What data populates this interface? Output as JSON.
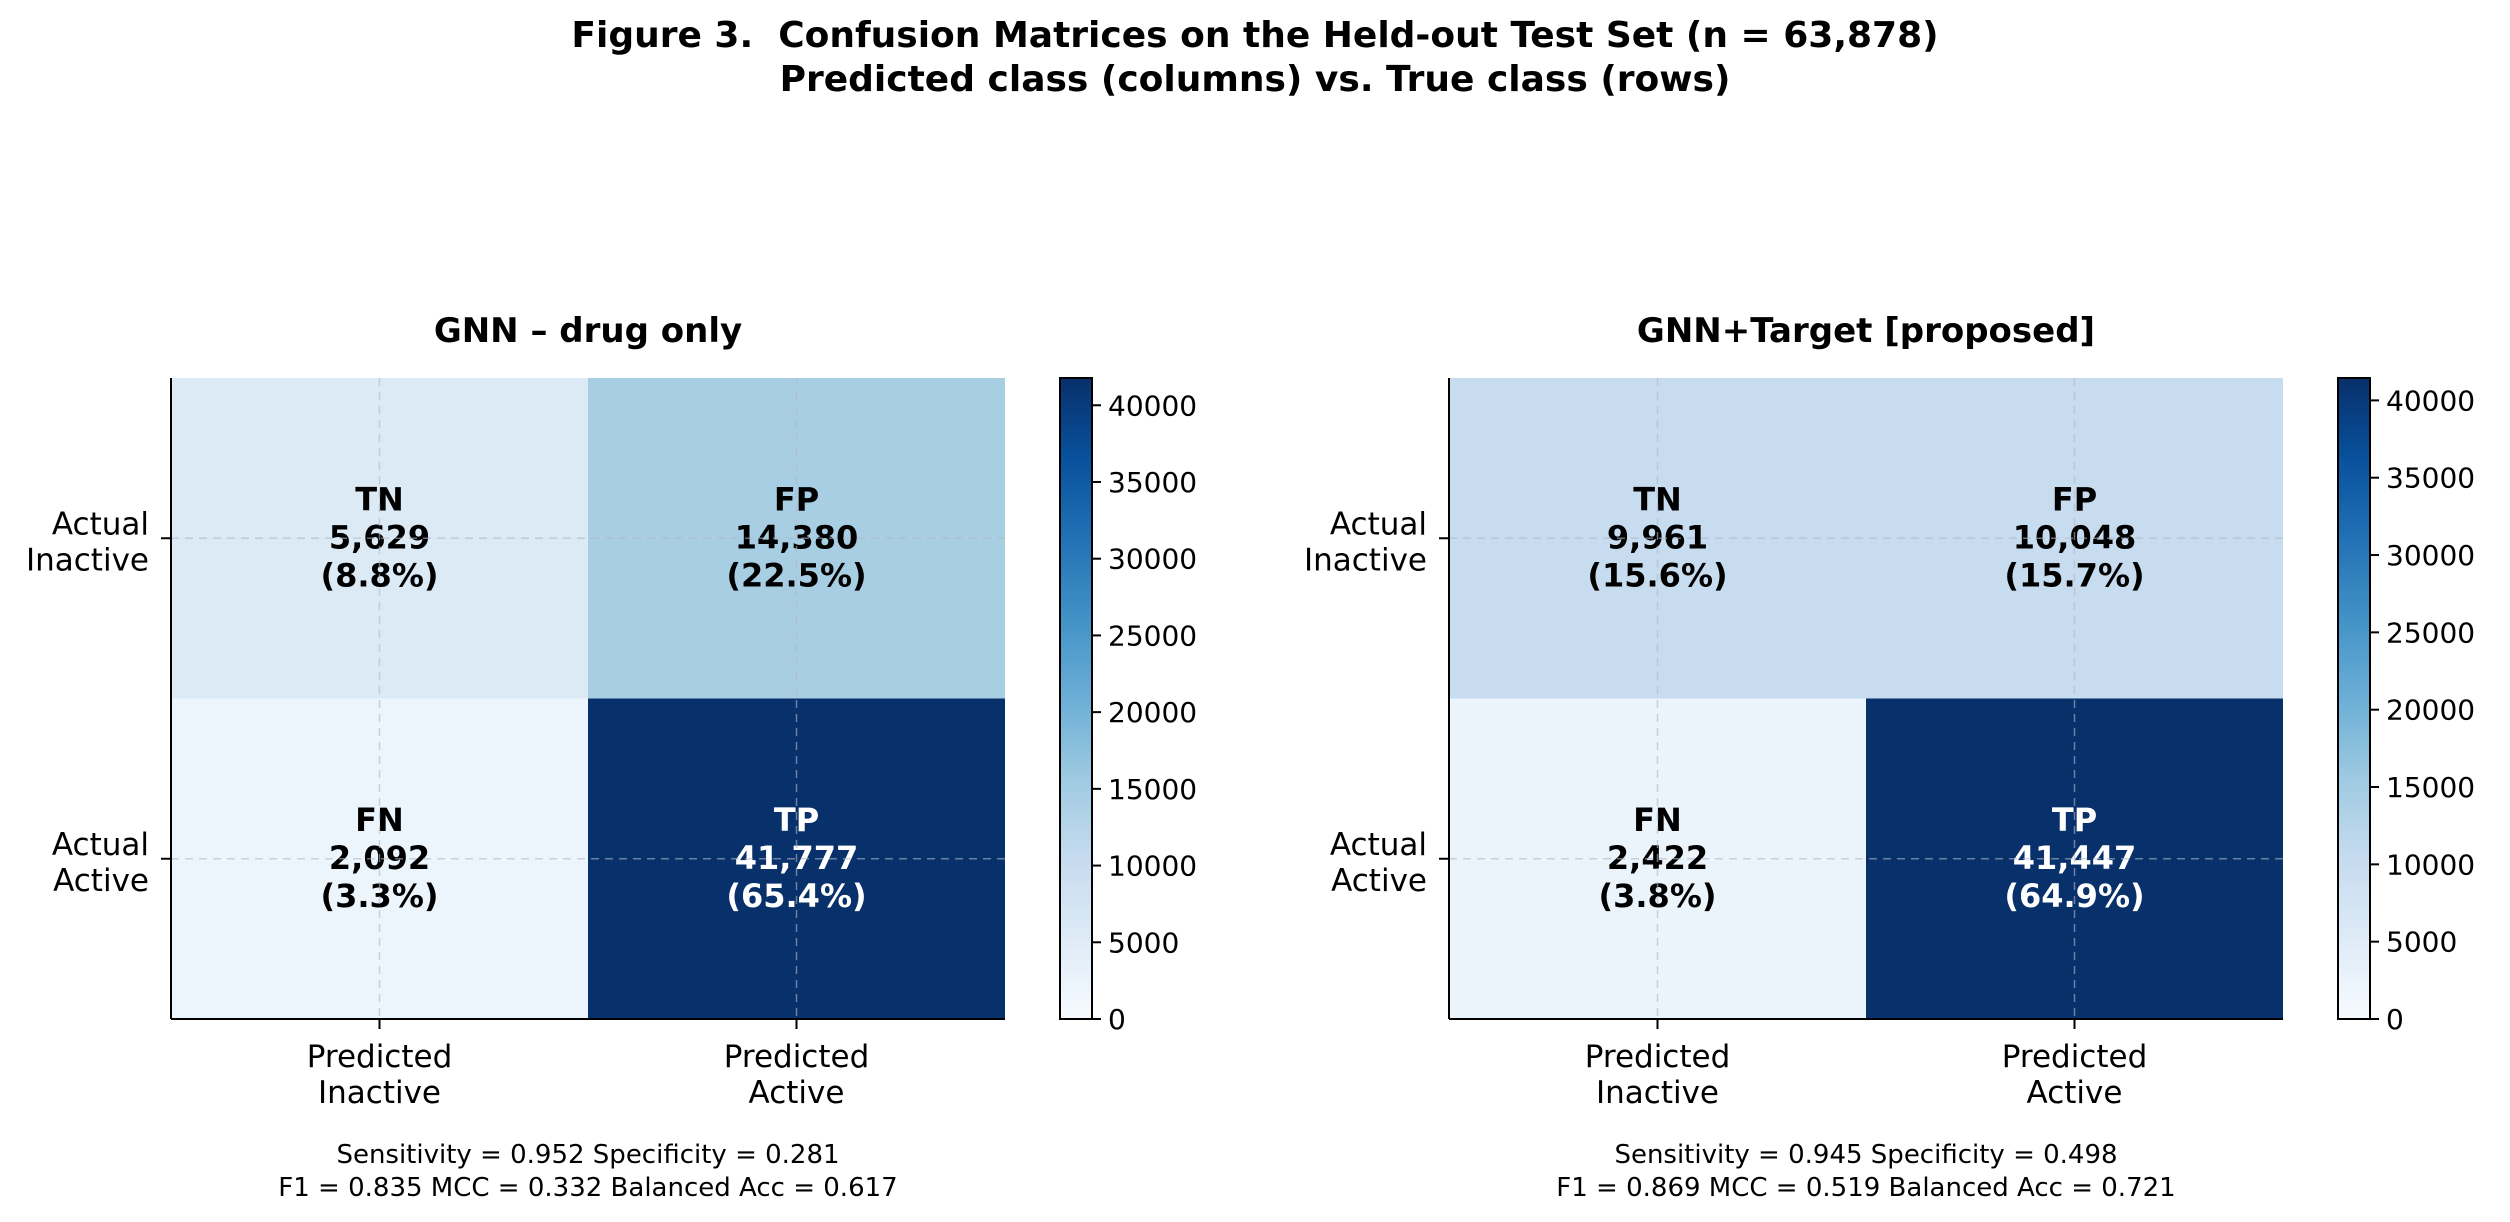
{
  "figure": {
    "title_line1": "Figure 3.  Confusion Matrices on the Held-out Test Set (n = 63,878)",
    "title_line2": "Predicted class (columns) vs. True class (rows)"
  },
  "colors": {
    "colormap": "Blues",
    "text_dark": "#000000",
    "text_light": "#ffffff",
    "gridline": "#b0b8c8"
  },
  "chart_data": [
    {
      "type": "heatmap",
      "title": "GNN – drug only",
      "x_categories": [
        [
          "Predicted",
          "Inactive"
        ],
        [
          "Predicted",
          "Active"
        ]
      ],
      "y_categories": [
        [
          "Actual",
          "Inactive"
        ],
        [
          "Actual",
          "Active"
        ]
      ],
      "cells": [
        [
          {
            "label": "TN",
            "count": 5629,
            "count_text": "5,629",
            "pct_text": "(8.8%)"
          },
          {
            "label": "FP",
            "count": 14380,
            "count_text": "14,380",
            "pct_text": "(22.5%)"
          }
        ],
        [
          {
            "label": "FN",
            "count": 2092,
            "count_text": "2,092",
            "pct_text": "(3.3%)"
          },
          {
            "label": "TP",
            "count": 41777,
            "count_text": "41,777",
            "pct_text": "(65.4%)"
          }
        ]
      ],
      "colorbar": {
        "min": 0,
        "max": 41777,
        "ticks": [
          0,
          5000,
          10000,
          15000,
          20000,
          25000,
          30000,
          35000,
          40000
        ]
      },
      "metrics_line1": "Sensitivity = 0.952   Specificity = 0.281",
      "metrics_line2": "F1 = 0.835   MCC = 0.332   Balanced Acc = 0.617",
      "grid": true
    },
    {
      "type": "heatmap",
      "title": "GNN+Target [proposed]",
      "x_categories": [
        [
          "Predicted",
          "Inactive"
        ],
        [
          "Predicted",
          "Active"
        ]
      ],
      "y_categories": [
        [
          "Actual",
          "Inactive"
        ],
        [
          "Actual",
          "Active"
        ]
      ],
      "cells": [
        [
          {
            "label": "TN",
            "count": 9961,
            "count_text": "9,961",
            "pct_text": "(15.6%)"
          },
          {
            "label": "FP",
            "count": 10048,
            "count_text": "10,048",
            "pct_text": "(15.7%)"
          }
        ],
        [
          {
            "label": "FN",
            "count": 2422,
            "count_text": "2,422",
            "pct_text": "(3.8%)"
          },
          {
            "label": "TP",
            "count": 41447,
            "count_text": "41,447",
            "pct_text": "(64.9%)"
          }
        ]
      ],
      "colorbar": {
        "min": 0,
        "max": 41447,
        "ticks": [
          0,
          5000,
          10000,
          15000,
          20000,
          25000,
          30000,
          35000,
          40000
        ]
      },
      "metrics_line1": "Sensitivity = 0.945   Specificity = 0.498",
      "metrics_line2": "F1 = 0.869   MCC = 0.519   Balanced Acc = 0.721",
      "grid": true
    }
  ]
}
